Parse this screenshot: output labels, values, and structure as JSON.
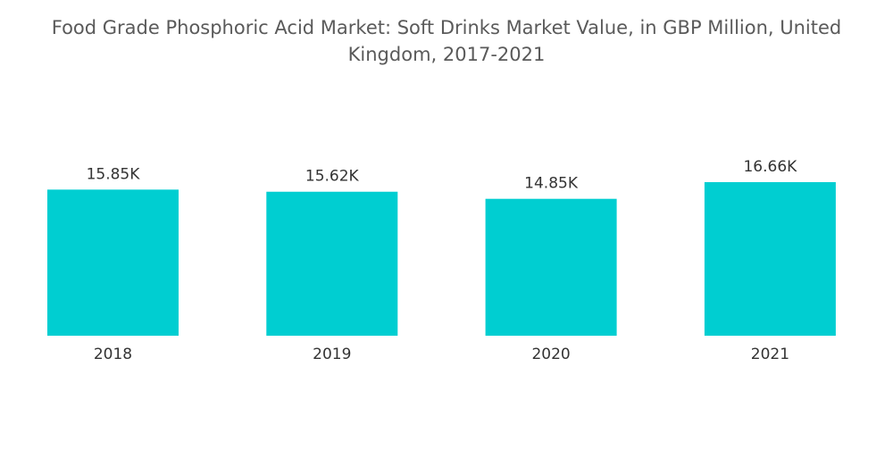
{
  "chart_data": {
    "type": "bar",
    "title": "Food Grade Phosphoric Acid Market: Soft Drinks Market Value, in GBP Million, United Kingdom, 2017-2021",
    "categories": [
      "2018",
      "2019",
      "2020",
      "2021"
    ],
    "values": [
      15850,
      15620,
      14850,
      16660
    ],
    "value_labels": [
      "15.85K",
      "15.62K",
      "14.85K",
      "16.66K"
    ],
    "color": "#00ced1"
  }
}
